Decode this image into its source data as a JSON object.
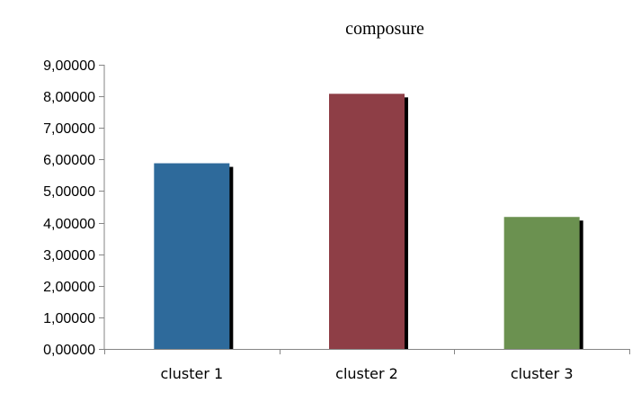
{
  "chart_data": {
    "type": "bar",
    "title": "composure",
    "categories": [
      "cluster 1",
      "cluster 2",
      "cluster 3"
    ],
    "values": [
      5.88,
      8.08,
      4.18
    ],
    "colors": [
      "#2e6a9b",
      "#8e3e46",
      "#6b9150"
    ],
    "shadow_color": "#000000",
    "ylim": [
      0,
      9
    ],
    "yticks": [
      0,
      1,
      2,
      3,
      4,
      5,
      6,
      7,
      8,
      9
    ],
    "ytick_labels": [
      "0,00000",
      "1,00000",
      "2,00000",
      "3,00000",
      "4,00000",
      "5,00000",
      "6,00000",
      "7,00000",
      "8,00000",
      "9,00000"
    ],
    "xlabel": "",
    "ylabel": "",
    "grid": false,
    "legend": "none",
    "axis_color": "#868686"
  }
}
